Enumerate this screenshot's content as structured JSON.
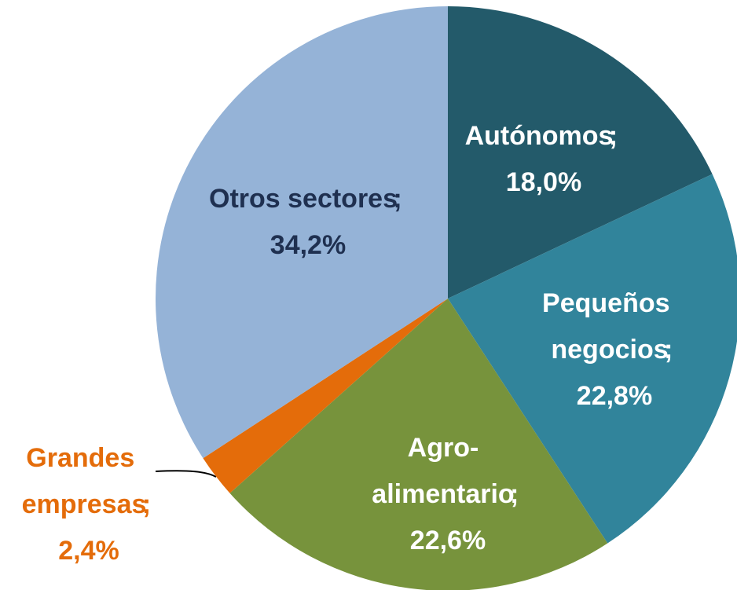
{
  "chart_data": {
    "type": "pie",
    "categories": [
      "Autónomos",
      "Pequeños negocios",
      "Agro-alimentario",
      "Grandes empresas",
      "Otros sectores"
    ],
    "values": [
      18.0,
      22.8,
      22.6,
      2.4,
      34.2
    ],
    "value_labels": [
      "18,0%",
      "22,8%",
      "22,6%",
      "2,4%",
      "34,2%"
    ],
    "label_separator": ";",
    "colors": [
      "#235a6a",
      "#31849b",
      "#77933c",
      "#e46c0a",
      "#95b3d7"
    ]
  }
}
